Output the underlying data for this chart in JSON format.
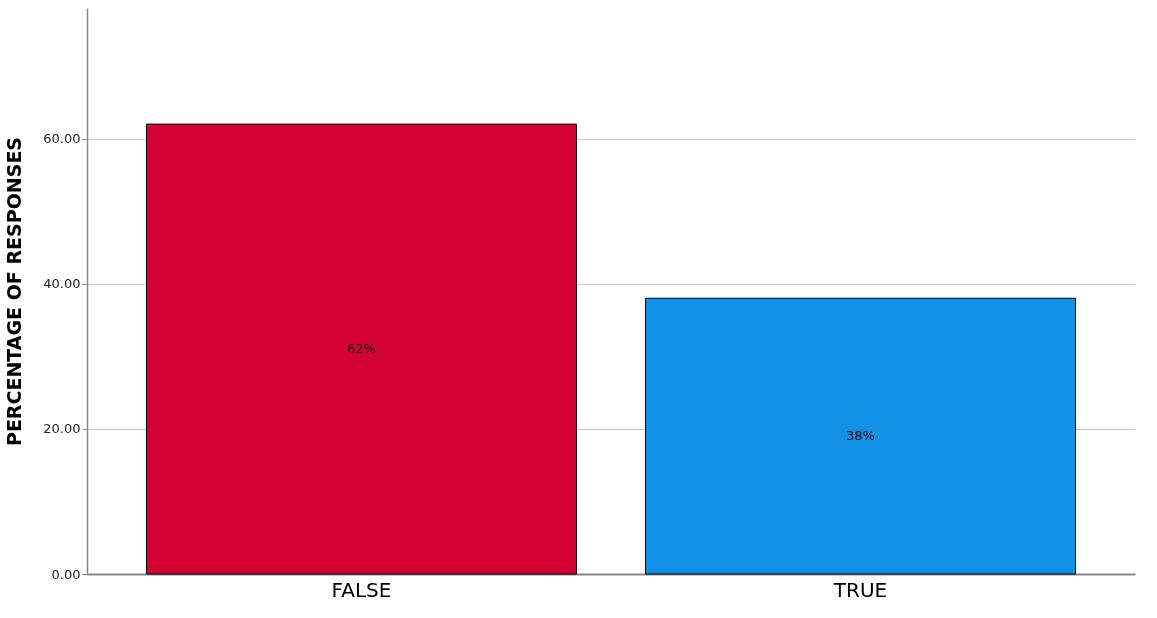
{
  "chart_data": {
    "type": "bar",
    "ylabel": "PERCENTAGE OF RESPONSES",
    "categories": [
      "FALSE",
      "TRUE"
    ],
    "values": [
      62,
      38
    ],
    "colors": [
      "#d50032",
      "#1191e8"
    ],
    "value_labels": [
      "62%",
      "38%"
    ],
    "ylim": [
      0,
      78
    ],
    "yticks": [
      {
        "value": 0,
        "label": "0.00"
      },
      {
        "value": 20,
        "label": "20.00"
      },
      {
        "value": 40,
        "label": "40.00"
      },
      {
        "value": 60,
        "label": "60.00"
      }
    ],
    "grid": "y"
  }
}
